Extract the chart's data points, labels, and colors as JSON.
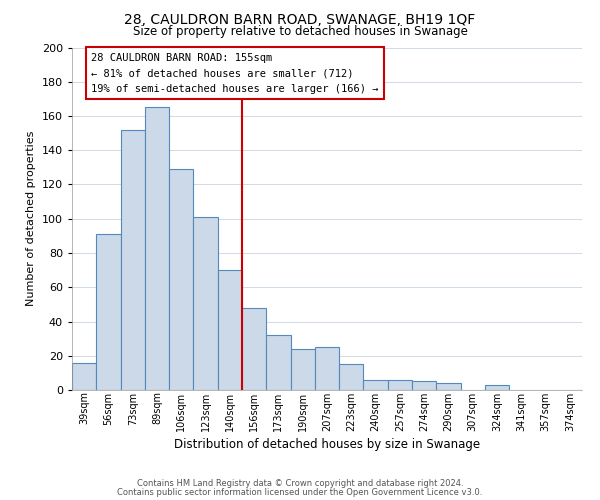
{
  "title": "28, CAULDRON BARN ROAD, SWANAGE, BH19 1QF",
  "subtitle": "Size of property relative to detached houses in Swanage",
  "xlabel": "Distribution of detached houses by size in Swanage",
  "ylabel": "Number of detached properties",
  "bar_labels": [
    "39sqm",
    "56sqm",
    "73sqm",
    "89sqm",
    "106sqm",
    "123sqm",
    "140sqm",
    "156sqm",
    "173sqm",
    "190sqm",
    "207sqm",
    "223sqm",
    "240sqm",
    "257sqm",
    "274sqm",
    "290sqm",
    "307sqm",
    "324sqm",
    "341sqm",
    "357sqm",
    "374sqm"
  ],
  "bar_heights": [
    16,
    91,
    152,
    165,
    129,
    101,
    70,
    48,
    32,
    24,
    25,
    15,
    6,
    6,
    5,
    4,
    0,
    3,
    0,
    0,
    0
  ],
  "bar_color": "#ccd9e8",
  "bar_edge_color": "#5588bb",
  "vline_index": 7,
  "vline_color": "#cc0000",
  "annotation_title": "28 CAULDRON BARN ROAD: 155sqm",
  "annotation_line1": "← 81% of detached houses are smaller (712)",
  "annotation_line2": "19% of semi-detached houses are larger (166) →",
  "annotation_box_edge": "#cc0000",
  "ylim": [
    0,
    200
  ],
  "yticks": [
    0,
    20,
    40,
    60,
    80,
    100,
    120,
    140,
    160,
    180,
    200
  ],
  "footer1": "Contains HM Land Registry data © Crown copyright and database right 2024.",
  "footer2": "Contains public sector information licensed under the Open Government Licence v3.0."
}
